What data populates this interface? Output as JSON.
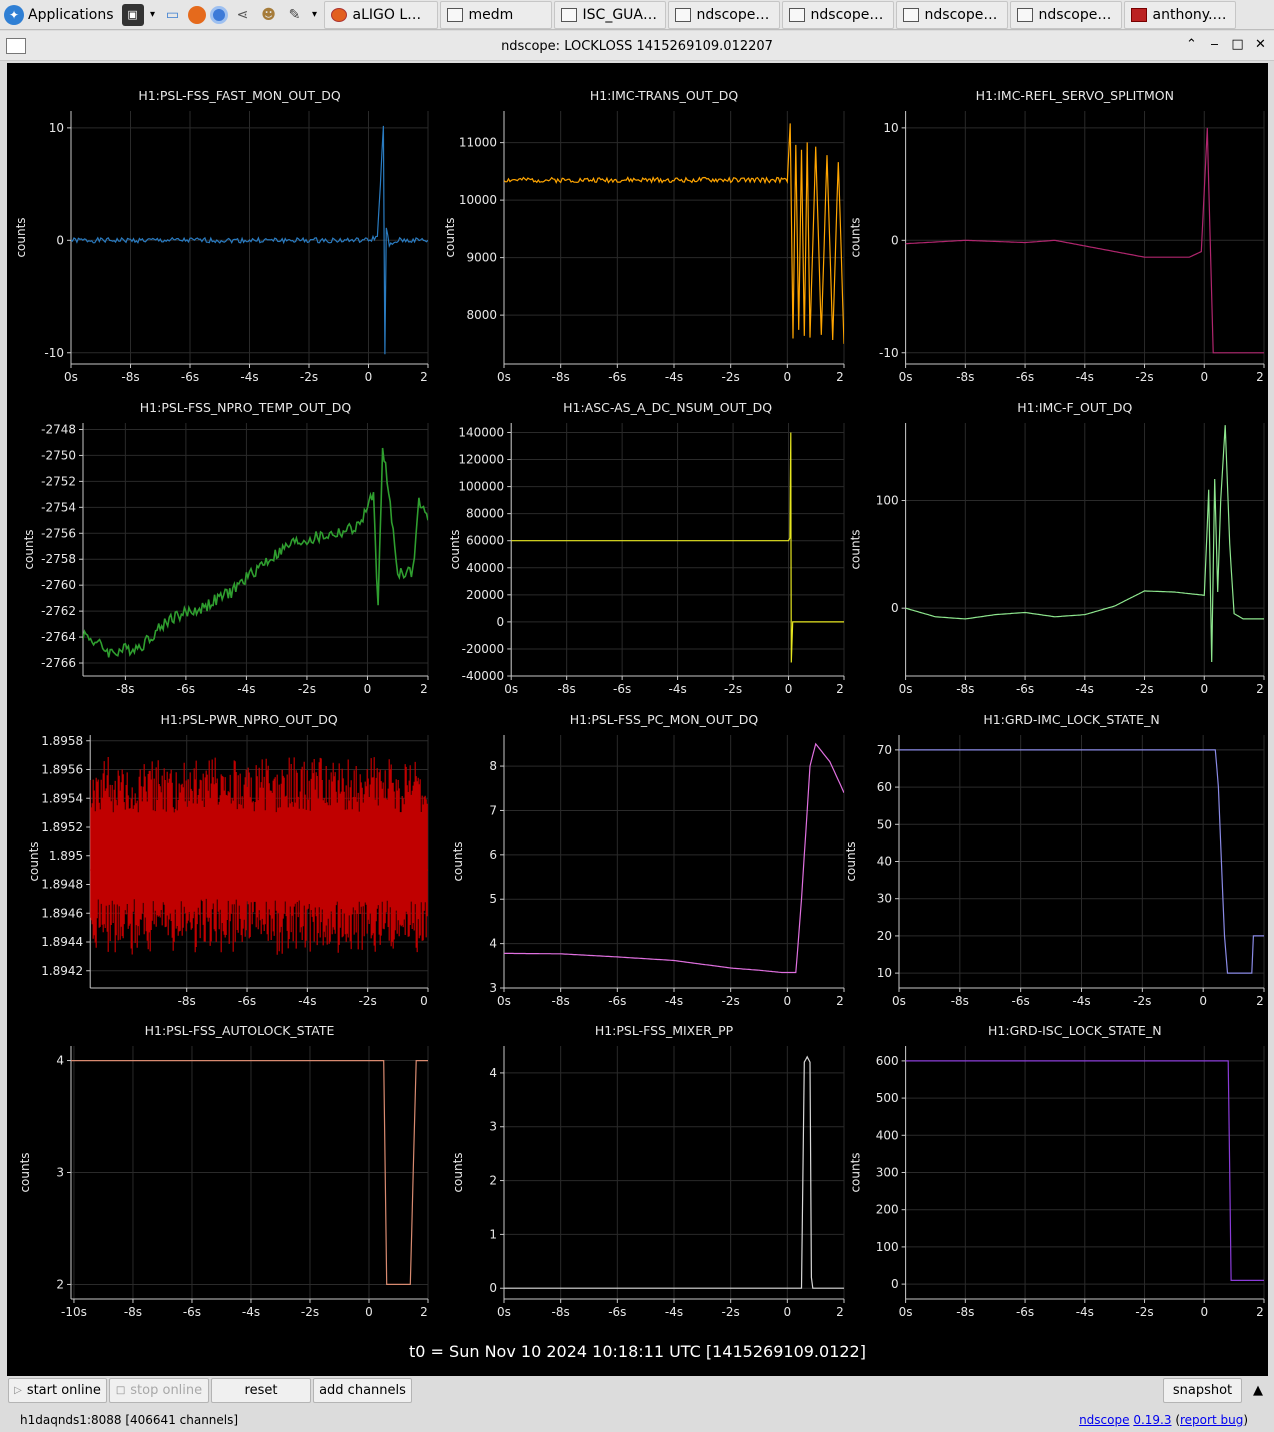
{
  "taskbar": {
    "apps_label": "Applications",
    "tasks": [
      {
        "label": "aLIGO LHO ...",
        "icon": "firefox-icon"
      },
      {
        "label": "medm",
        "icon": "window-icon"
      },
      {
        "label": "ISC_GUAR...",
        "icon": "monitor-icon"
      },
      {
        "label": "ndscope: H...",
        "icon": "window-icon"
      },
      {
        "label": "ndscope: L...",
        "icon": "window-icon"
      },
      {
        "label": "ndscope: L...",
        "icon": "window-icon"
      },
      {
        "label": "ndscope: L...",
        "icon": "window-icon"
      },
      {
        "label": "anthony.sa...",
        "icon": "terminal-icon"
      }
    ]
  },
  "window": {
    "title": "ndscope: LOCKLOSS 1415269109.012207"
  },
  "t0_label": "t0 = Sun Nov 10 2024 10:18:11 UTC [1415269109.0122]",
  "buttons": {
    "start_online": "start online",
    "stop_online": "stop online",
    "reset": "reset",
    "add_channels": "add channels",
    "snapshot": "snapshot"
  },
  "status": {
    "server": "h1daqnds1:8088  [406641 channels]",
    "app_name": "ndscope",
    "version": "0.19.3",
    "report_bug": "report bug"
  },
  "colors": {
    "plot_background": "#000000",
    "grid": "#2a2a2a",
    "axis": "#c8c8c8"
  },
  "chart_data": [
    {
      "type": "line",
      "title": "H1:PSL-FSS_FAST_MON_OUT_DQ",
      "ylabel": "counts",
      "color": "#2a7bc0",
      "xticks": [
        "0s",
        "-8s",
        "-6s",
        "-4s",
        "-2s",
        "0",
        "2"
      ],
      "yticks": [
        "10",
        "0",
        "-10"
      ],
      "xlim": [
        -10,
        2
      ],
      "ylim": [
        -11,
        11.5
      ],
      "x": [
        -10,
        -8,
        -6,
        -4,
        -2,
        0,
        0.3,
        0.5,
        0.55,
        0.6,
        0.7,
        1.0,
        2
      ],
      "y": [
        0,
        0,
        0,
        0,
        0,
        0,
        0.3,
        10,
        -10,
        1,
        -0.5,
        0,
        0
      ]
    },
    {
      "type": "line",
      "title": "H1:IMC-TRANS_OUT_DQ",
      "ylabel": "counts",
      "color": "#ffa500",
      "xticks": [
        "0s",
        "-8s",
        "-6s",
        "-4s",
        "-2s",
        "0",
        "2"
      ],
      "yticks": [
        "11000",
        "10000",
        "9000",
        "8000"
      ],
      "xlim": [
        -10,
        2
      ],
      "ylim": [
        7150,
        11550
      ],
      "x": [
        -10,
        -8,
        -6,
        -4,
        -2,
        0,
        0.1,
        0.2,
        0.3,
        0.4,
        0.5,
        0.6,
        0.7,
        0.8,
        1.0,
        1.2,
        1.4,
        1.6,
        1.8,
        2
      ],
      "y": [
        10350,
        10350,
        10350,
        10350,
        10350,
        10350,
        11300,
        7600,
        11000,
        7700,
        10900,
        7600,
        11000,
        7600,
        10900,
        7700,
        10800,
        7600,
        10700,
        7500
      ]
    },
    {
      "type": "line",
      "title": "H1:IMC-REFL_SERVO_SPLITMON",
      "ylabel": "counts",
      "color": "#b0266e",
      "xticks": [
        "0s",
        "-8s",
        "-6s",
        "-4s",
        "-2s",
        "0",
        "2"
      ],
      "yticks": [
        "10",
        "0",
        "-10"
      ],
      "xlim": [
        -10,
        2
      ],
      "ylim": [
        -11,
        11.5
      ],
      "x": [
        -10,
        -8,
        -6,
        -5,
        -3,
        -2,
        -0.5,
        -0.1,
        0.1,
        0.3,
        0.5,
        2
      ],
      "y": [
        -0.3,
        0,
        -0.2,
        0,
        -1,
        -1.5,
        -1.5,
        -1,
        10,
        -10,
        -10,
        -10
      ]
    },
    {
      "type": "line",
      "title": "H1:PSL-FSS_NPRO_TEMP_OUT_DQ",
      "ylabel": "counts",
      "color": "#2f9e2f",
      "xticks": [
        "-8s",
        "-6s",
        "-4s",
        "-2s",
        "0",
        "2"
      ],
      "yticks": [
        "-2748",
        "-2750",
        "-2752",
        "-2754",
        "-2756",
        "-2758",
        "-2760",
        "-2762",
        "-2764",
        "-2766"
      ],
      "xlim": [
        -9.4,
        2
      ],
      "ylim": [
        -2767,
        -2747.5
      ],
      "x": [
        -9.4,
        -8.5,
        -7.5,
        -6.5,
        -5.5,
        -4.5,
        -3.5,
        -2.5,
        -2.0,
        -1.0,
        -0.3,
        0.2,
        0.35,
        0.5,
        1.0,
        1.5,
        1.7,
        2
      ],
      "y": [
        -2763.7,
        -2765.2,
        -2764.7,
        -2762.5,
        -2761.8,
        -2760.5,
        -2758.4,
        -2756.8,
        -2756.5,
        -2756.0,
        -2755.5,
        -2753.0,
        -2762.0,
        -2749.0,
        -2759.0,
        -2759.0,
        -2753.5,
        -2755.0
      ]
    },
    {
      "type": "line",
      "title": "H1:ASC-AS_A_DC_NSUM_OUT_DQ",
      "ylabel": "counts",
      "color": "#e6e620",
      "xticks": [
        "0s",
        "-8s",
        "-6s",
        "-4s",
        "-2s",
        "0",
        "2"
      ],
      "yticks": [
        "140000",
        "120000",
        "100000",
        "80000",
        "60000",
        "40000",
        "20000",
        "0",
        "-20000",
        "-40000"
      ],
      "xlim": [
        -10,
        2
      ],
      "ylim": [
        -40000,
        147000
      ],
      "x": [
        -10,
        -6,
        -2,
        0,
        0.05,
        0.08,
        0.1,
        0.15,
        0.2,
        2
      ],
      "y": [
        60000,
        60000,
        60000,
        60000,
        62000,
        140000,
        -30000,
        0,
        0,
        0
      ]
    },
    {
      "type": "line",
      "title": "H1:IMC-F_OUT_DQ",
      "ylabel": "counts",
      "color": "#8ee68e",
      "xticks": [
        "0s",
        "-8s",
        "-6s",
        "-4s",
        "-2s",
        "0",
        "2"
      ],
      "yticks": [
        "100",
        "0"
      ],
      "xlim": [
        -10,
        2
      ],
      "ylim": [
        -63,
        172
      ],
      "x": [
        -10,
        -9,
        -8,
        -7,
        -6,
        -5,
        -4,
        -3,
        -2,
        -1,
        0,
        0.15,
        0.25,
        0.35,
        0.45,
        0.55,
        0.7,
        0.85,
        1.0,
        1.3,
        1.6,
        2
      ],
      "y": [
        0,
        -8,
        -10,
        -6,
        -4,
        -8,
        -6,
        2,
        16,
        15,
        12,
        110,
        -50,
        120,
        15,
        100,
        170,
        60,
        -5,
        -10,
        -10,
        -10
      ]
    },
    {
      "type": "line",
      "title": "H1:PSL-PWR_NPRO_OUT_DQ",
      "ylabel": "counts",
      "color": "#c00000",
      "xticks": [
        "-8s",
        "-6s",
        "-4s",
        "-2s",
        "0"
      ],
      "yticks": [
        "1.8958",
        "1.8956",
        "1.8954",
        "1.8952",
        "1.895",
        "1.8948",
        "1.8946",
        "1.8944",
        "1.8942"
      ],
      "xlim": [
        -9.2,
        2
      ],
      "ylim": [
        1.89408,
        1.89584
      ],
      "x": [
        -9.2,
        2
      ],
      "y": [
        1.8949,
        1.8949
      ],
      "band": [
        1.8944,
        1.8956
      ]
    },
    {
      "type": "line",
      "title": "H1:PSL-FSS_PC_MON_OUT_DQ",
      "ylabel": "counts",
      "color": "#e070e0",
      "xticks": [
        "0s",
        "-8s",
        "-6s",
        "-4s",
        "-2s",
        "0",
        "2"
      ],
      "yticks": [
        "8",
        "7",
        "6",
        "5",
        "4",
        "3"
      ],
      "xlim": [
        -10,
        2
      ],
      "ylim": [
        3,
        8.7
      ],
      "x": [
        -10,
        -8,
        -6,
        -4,
        -2,
        -1,
        -0.2,
        0.3,
        0.5,
        0.8,
        1.0,
        1.5,
        2
      ],
      "y": [
        3.78,
        3.77,
        3.7,
        3.62,
        3.45,
        3.4,
        3.35,
        3.35,
        5.0,
        8.0,
        8.5,
        8.1,
        7.4
      ]
    },
    {
      "type": "line",
      "title": "H1:GRD-IMC_LOCK_STATE_N",
      "ylabel": "counts",
      "color": "#8a8ae6",
      "xticks": [
        "0s",
        "-8s",
        "-6s",
        "-4s",
        "-2s",
        "0",
        "2"
      ],
      "yticks": [
        "70",
        "60",
        "50",
        "40",
        "30",
        "20",
        "10"
      ],
      "xlim": [
        -10,
        2
      ],
      "ylim": [
        6,
        74
      ],
      "x": [
        -10,
        0.4,
        0.5,
        0.6,
        0.7,
        0.8,
        1.6,
        1.65,
        2
      ],
      "y": [
        70,
        70,
        60,
        40,
        20,
        10,
        10,
        20,
        20
      ]
    },
    {
      "type": "line",
      "title": "H1:PSL-FSS_AUTOLOCK_STATE",
      "ylabel": "counts",
      "color": "#d88a70",
      "xticks": [
        "-10s",
        "-8s",
        "-6s",
        "-4s",
        "-2s",
        "0",
        "2"
      ],
      "yticks": [
        "4",
        "3",
        "2"
      ],
      "xlim": [
        -10.1,
        2
      ],
      "ylim": [
        1.87,
        4.13
      ],
      "x": [
        -10.1,
        0.5,
        0.6,
        1.4,
        1.5,
        1.6,
        2
      ],
      "y": [
        4,
        4,
        2,
        2,
        3,
        4,
        4
      ]
    },
    {
      "type": "line",
      "title": "H1:PSL-FSS_MIXER_PP",
      "ylabel": "counts",
      "color": "#d8d8d8",
      "xticks": [
        "0s",
        "-8s",
        "-6s",
        "-4s",
        "-2s",
        "0",
        "2"
      ],
      "yticks": [
        "4",
        "3",
        "2",
        "1",
        "0"
      ],
      "xlim": [
        -10,
        2
      ],
      "ylim": [
        -0.2,
        4.5
      ],
      "x": [
        -10,
        0.5,
        0.6,
        0.7,
        0.8,
        0.85,
        0.9,
        2
      ],
      "y": [
        0,
        0,
        4.2,
        4.3,
        4.2,
        0.2,
        0,
        0
      ]
    },
    {
      "type": "line",
      "title": "H1:GRD-ISC_LOCK_STATE_N",
      "ylabel": "counts",
      "color": "#8a3cd8",
      "xticks": [
        "0s",
        "-8s",
        "-6s",
        "-4s",
        "-2s",
        "0",
        "2"
      ],
      "yticks": [
        "600",
        "500",
        "400",
        "300",
        "200",
        "100",
        "0"
      ],
      "xlim": [
        -10,
        2
      ],
      "ylim": [
        -40,
        640
      ],
      "x": [
        -10,
        0.8,
        0.9,
        1.0,
        2
      ],
      "y": [
        600,
        600,
        10,
        10,
        10
      ]
    }
  ]
}
